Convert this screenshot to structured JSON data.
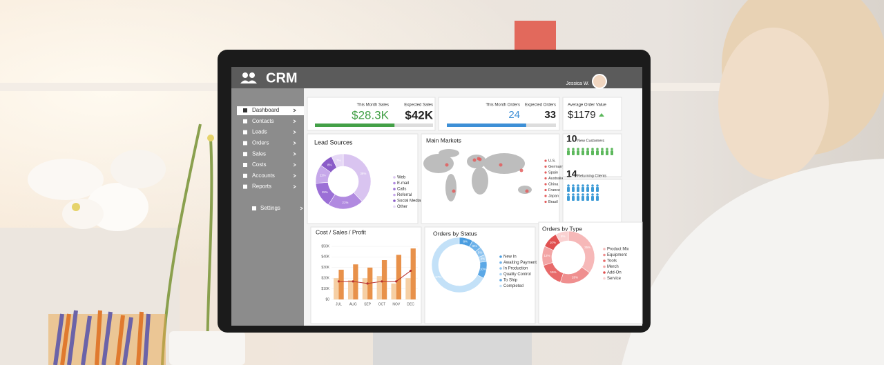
{
  "header": {
    "title": "CRM",
    "user": "Jessica W."
  },
  "sidebar": {
    "items": [
      "Dashboard",
      "Contacts",
      "Leads",
      "Orders",
      "Sales",
      "Costs",
      "Accounts",
      "Reports"
    ],
    "settings": "Settings"
  },
  "kpis": {
    "sales": {
      "label": "This Month Sales",
      "value": 28300,
      "value_label": "$28.3K",
      "color": "#43a047"
    },
    "expected_sales": {
      "label": "Expected Sales",
      "value": 42000,
      "value_label": "$42K"
    },
    "orders": {
      "label": "This Month Orders",
      "value": 24,
      "color": "#3d8fd6"
    },
    "expected_orders": {
      "label": "Expected Orders",
      "value": 33
    },
    "avg_order": {
      "label": "Average Order Value",
      "value": 1179,
      "value_label": "$1179"
    }
  },
  "lead_sources": {
    "title": "Lead Sources",
    "categories": [
      "Web",
      "E-mail",
      "Calls",
      "Referral",
      "Social Media",
      "Other"
    ],
    "values": [
      38,
      21,
      15,
      11,
      8,
      7
    ],
    "value_labels": [
      "38%",
      "21%",
      "15%",
      "11%",
      "8%",
      "7%"
    ],
    "colors": [
      "#d9c4f0",
      "#b18ae0",
      "#9b6fd6",
      "#c6a8ea",
      "#8a5cc8",
      "#e6d8f6"
    ]
  },
  "main_markets": {
    "title": "Main Markets",
    "categories": [
      "U.S.",
      "Germany",
      "Spain",
      "Australia",
      "China",
      "France",
      "Japan",
      "Brasil"
    ],
    "marker_color": "#e35d5d"
  },
  "customers": {
    "new": {
      "value": 10,
      "label": "New Customers",
      "color": "#5cb85c"
    },
    "returning": {
      "value": 14,
      "label": "Returning Clients",
      "color": "#3d9bd6"
    }
  },
  "cost_sales_profit": {
    "title": "Cost / Sales / Profit",
    "categories": [
      "JUL",
      "AUG",
      "SEP",
      "OCT",
      "NOV",
      "DEC"
    ],
    "ylim": [
      0,
      50000
    ],
    "yticks": [
      {
        "value": 0,
        "label": "$0"
      },
      {
        "value": 10000,
        "label": "$10K"
      },
      {
        "value": 20000,
        "label": "$20K"
      },
      {
        "value": 30000,
        "label": "$30K"
      },
      {
        "value": 40000,
        "label": "$40K"
      },
      {
        "value": 50000,
        "label": "$50K"
      }
    ],
    "series": [
      {
        "type": "bar",
        "color": "#f6cfa4",
        "values": [
          20000,
          18000,
          20000,
          22000,
          15000,
          20000
        ]
      },
      {
        "type": "bar",
        "color": "#e8914a",
        "values": [
          28000,
          33000,
          30000,
          37000,
          42000,
          48000
        ]
      },
      {
        "type": "line",
        "color": "#b8322f",
        "values": [
          17000,
          17000,
          15000,
          17000,
          17000,
          27000
        ]
      }
    ]
  },
  "orders_by_status": {
    "title": "Orders by Status",
    "categories": [
      "New In",
      "Awaiting Payment",
      "In Production",
      "Quality Control",
      "To Ship",
      "Completed"
    ],
    "values": [
      8,
      6,
      5,
      4,
      10,
      67
    ],
    "value_labels": [
      "8%",
      "6%",
      "5%",
      "4%",
      "10%",
      "67%"
    ],
    "colors": [
      "#4a9de0",
      "#6fb3ea",
      "#8cc3ef",
      "#a9d3f4",
      "#5ba8e6",
      "#c3e1f8"
    ]
  },
  "orders_by_type": {
    "title": "Orders by Type",
    "categories": [
      "Product Mix",
      "Equipment",
      "Tools",
      "Merch",
      "Add-On",
      "Service"
    ],
    "values": [
      35,
      20,
      15,
      12,
      10,
      8
    ],
    "value_labels": [
      "35%",
      "20%",
      "15%",
      "12%",
      "10%",
      "8%"
    ],
    "colors": [
      "#f6b8b8",
      "#ef8f8f",
      "#e86a6a",
      "#f3a5a5",
      "#e05050",
      "#fad1d1"
    ]
  }
}
